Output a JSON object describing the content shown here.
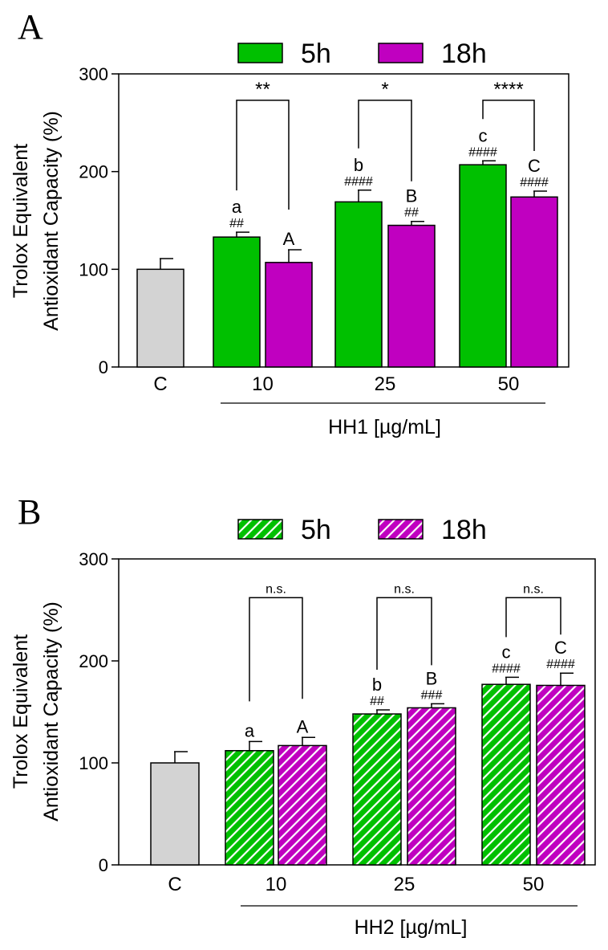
{
  "colors": {
    "control": "#d3d3d3",
    "green": "#00c000",
    "magenta": "#c000c0",
    "axis": "#000000"
  },
  "chart_data": [
    {
      "type": "bar",
      "panel": "A",
      "legend": [
        {
          "label": "5h",
          "color": "#00c000",
          "pattern": "solid"
        },
        {
          "label": "18h",
          "color": "#c000c0",
          "pattern": "solid"
        }
      ],
      "ylabel": [
        "Trolox Equivalent",
        "Antioxidant Capacity (%)"
      ],
      "xlabel": "HH1 [µg/mL]",
      "ylim": [
        0,
        300
      ],
      "yticks": [
        0,
        100,
        200,
        300
      ],
      "categories": [
        "C",
        "10",
        "25",
        "50"
      ],
      "bars": [
        {
          "category": "C",
          "series": "control",
          "value": 100,
          "error": 11,
          "letter": "",
          "hash": ""
        },
        {
          "category": "10",
          "series": "5h",
          "value": 133,
          "error": 5,
          "letter": "a",
          "hash": "##"
        },
        {
          "category": "10",
          "series": "18h",
          "value": 107,
          "error": 13,
          "letter": "A",
          "hash": ""
        },
        {
          "category": "25",
          "series": "5h",
          "value": 169,
          "error": 12,
          "letter": "b",
          "hash": "####"
        },
        {
          "category": "25",
          "series": "18h",
          "value": 145,
          "error": 4,
          "letter": "B",
          "hash": "##"
        },
        {
          "category": "50",
          "series": "5h",
          "value": 207,
          "error": 4,
          "letter": "c",
          "hash": "####"
        },
        {
          "category": "50",
          "series": "18h",
          "value": 174,
          "error": 6,
          "letter": "C",
          "hash": "####"
        }
      ],
      "brackets": [
        {
          "category": "10",
          "label": "**",
          "level": 273
        },
        {
          "category": "25",
          "label": "*",
          "level": 273
        },
        {
          "category": "50",
          "label": "****",
          "level": 273
        }
      ]
    },
    {
      "type": "bar",
      "panel": "B",
      "legend": [
        {
          "label": "5h",
          "color": "#00c000",
          "pattern": "hatched"
        },
        {
          "label": "18h",
          "color": "#c000c0",
          "pattern": "hatched"
        }
      ],
      "ylabel": [
        "Trolox Equivalent",
        "Antioxidant Capacity (%)"
      ],
      "xlabel": "HH2 [µg/mL]",
      "ylim": [
        0,
        300
      ],
      "yticks": [
        0,
        100,
        200,
        300
      ],
      "categories": [
        "C",
        "10",
        "25",
        "50"
      ],
      "bars": [
        {
          "category": "C",
          "series": "control",
          "value": 100,
          "error": 11,
          "letter": "",
          "hash": ""
        },
        {
          "category": "10",
          "series": "5h",
          "value": 112,
          "error": 9,
          "letter": "a",
          "hash": ""
        },
        {
          "category": "10",
          "series": "18h",
          "value": 117,
          "error": 8,
          "letter": "A",
          "hash": ""
        },
        {
          "category": "25",
          "series": "5h",
          "value": 148,
          "error": 4,
          "letter": "b",
          "hash": "##"
        },
        {
          "category": "25",
          "series": "18h",
          "value": 154,
          "error": 4,
          "letter": "B",
          "hash": "###"
        },
        {
          "category": "50",
          "series": "5h",
          "value": 177,
          "error": 7,
          "letter": "c",
          "hash": "####"
        },
        {
          "category": "50",
          "series": "18h",
          "value": 176,
          "error": 12,
          "letter": "C",
          "hash": "####"
        }
      ],
      "brackets": [
        {
          "category": "10",
          "label": "n.s.",
          "level": 262
        },
        {
          "category": "25",
          "label": "n.s.",
          "level": 262
        },
        {
          "category": "50",
          "label": "n.s.",
          "level": 262
        }
      ]
    }
  ]
}
